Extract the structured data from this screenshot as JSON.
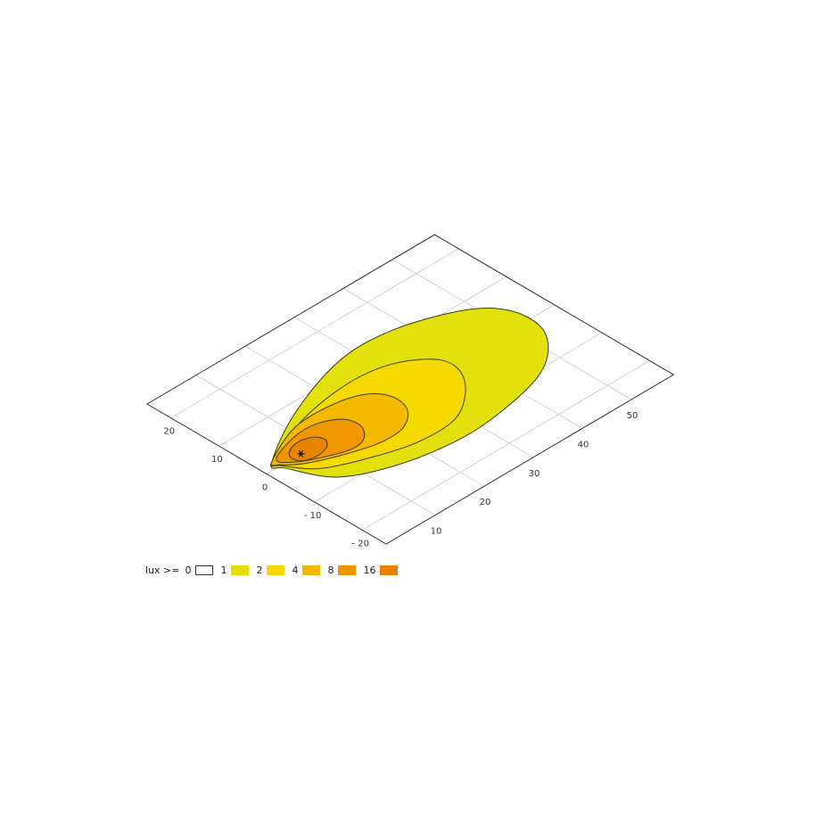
{
  "chart_data": {
    "type": "contour",
    "title": "",
    "xlabel": "",
    "ylabel": "",
    "xlim": [
      0,
      58.6
    ],
    "ylim": [
      -25,
      25
    ],
    "grid": true,
    "x_ticks": [
      "10",
      "20",
      "30",
      "40",
      "50"
    ],
    "y_ticks": [
      "20",
      "10",
      "0",
      "- 10",
      "- 20"
    ],
    "x_tick_values": [
      10,
      20,
      30,
      40,
      50
    ],
    "y_tick_values": [
      20,
      10,
      0,
      -10,
      -20
    ],
    "light_source": {
      "x": 7,
      "y": 0,
      "marker": "asterisk"
    },
    "legend": {
      "label": "lux >=",
      "placement": "bottom-left",
      "levels": [
        {
          "value": "0",
          "color": "#ffffff"
        },
        {
          "value": "1",
          "color": "#e2df00"
        },
        {
          "value": "2",
          "color": "#f6d800"
        },
        {
          "value": "4",
          "color": "#f3b700"
        },
        {
          "value": "8",
          "color": "#f09500"
        },
        {
          "value": "16",
          "color": "#e88300"
        }
      ]
    },
    "contours": [
      {
        "level": 1,
        "color": "#e2df00",
        "points": [
          [
            2.3,
            1.3
          ],
          [
            13.1,
            7.7
          ],
          [
            26.9,
            12.5
          ],
          [
            37.8,
            12.4
          ],
          [
            48.4,
            8.5
          ],
          [
            53,
            3.8
          ],
          [
            53.5,
            -2.2
          ],
          [
            50.5,
            -7.1
          ],
          [
            45,
            -10.9
          ],
          [
            36.4,
            -13.2
          ],
          [
            26.5,
            -14.1
          ],
          [
            15.5,
            -12.3
          ],
          [
            6.8,
            -8.1
          ],
          [
            2.9,
            -0.9
          ]
        ]
      },
      {
        "level": 2,
        "color": "#f6d800",
        "points": [
          [
            2.6,
            1.6
          ],
          [
            13.2,
            5.9
          ],
          [
            24,
            7.6
          ],
          [
            31.9,
            6.4
          ],
          [
            37.2,
            2.5
          ],
          [
            37.6,
            -1.7
          ],
          [
            34.4,
            -6.3
          ],
          [
            28.6,
            -10
          ],
          [
            21.1,
            -10.2
          ],
          [
            14,
            -8.2
          ],
          [
            6.5,
            -4.7
          ],
          [
            2.9,
            0
          ]
        ]
      },
      {
        "level": 4,
        "color": "#f3b700",
        "points": [
          [
            2.6,
            1.6
          ],
          [
            10.8,
            5.3
          ],
          [
            18.3,
            5.5
          ],
          [
            23.9,
            3.8
          ],
          [
            26.2,
            0.5
          ],
          [
            25.4,
            -3.4
          ],
          [
            21.8,
            -6.1
          ],
          [
            16.8,
            -6.3
          ],
          [
            11.1,
            -4.6
          ],
          [
            5.5,
            -2
          ],
          [
            2.9,
            0.3
          ]
        ]
      },
      {
        "level": 8,
        "color": "#f09500",
        "points": [
          [
            3.5,
            1.6
          ],
          [
            9.2,
            3.7
          ],
          [
            13.8,
            3.7
          ],
          [
            17.3,
            1.7
          ],
          [
            17.9,
            -1.4
          ],
          [
            16,
            -3.9
          ],
          [
            13.1,
            -4.5
          ],
          [
            9,
            -3.1
          ],
          [
            4.9,
            -0.8
          ]
        ]
      },
      {
        "level": 16,
        "color": "#e88300",
        "points": [
          [
            6.5,
            1.8
          ],
          [
            8.9,
            2.4
          ],
          [
            11.2,
            1.6
          ],
          [
            11.9,
            -0.1
          ],
          [
            10.6,
            -1.6
          ],
          [
            8.1,
            -2.1
          ],
          [
            5.8,
            -1.3
          ],
          [
            5.3,
            0.4
          ]
        ]
      }
    ]
  }
}
